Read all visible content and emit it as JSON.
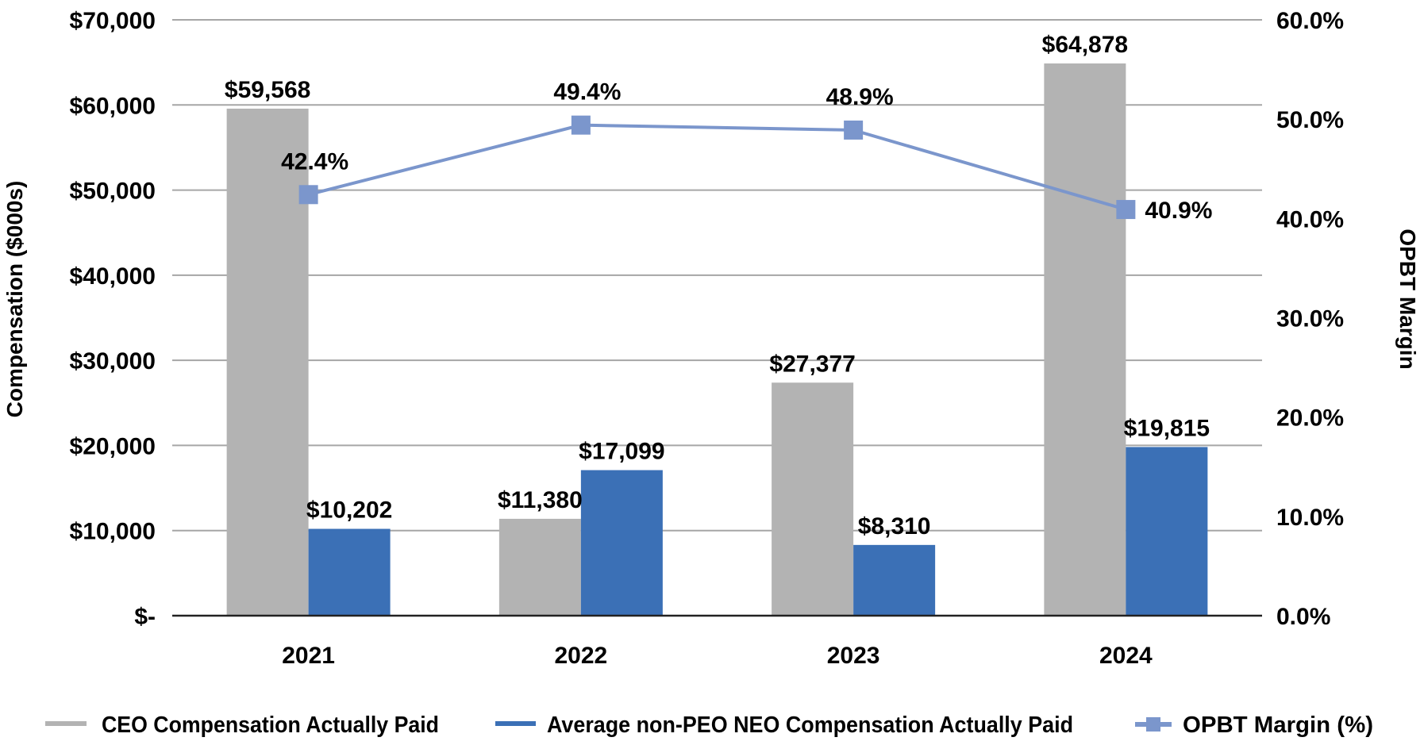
{
  "chart_data": {
    "type": "bar+line",
    "categories": [
      "2021",
      "2022",
      "2023",
      "2024"
    ],
    "series": [
      {
        "name": "CEO Compensation Actually Paid",
        "kind": "bar",
        "axis": "left",
        "color": "#b3b3b3",
        "values": [
          59568,
          11380,
          27377,
          64878
        ],
        "labels": [
          "$59,568",
          "$11,380",
          "$27,377",
          "$64,878"
        ]
      },
      {
        "name": "Average non-PEO NEO Compensation Actually Paid",
        "kind": "bar",
        "axis": "left",
        "color": "#3b70b6",
        "values": [
          10202,
          17099,
          8310,
          19815
        ],
        "labels": [
          "$10,202",
          "$17,099",
          "$8,310",
          "$19,815"
        ]
      },
      {
        "name": "OPBT Margin (%)",
        "kind": "line",
        "marker": "square",
        "axis": "right",
        "color": "#7b96cc",
        "values": [
          42.4,
          49.4,
          48.9,
          40.9
        ],
        "labels": [
          "42.4%",
          "49.4%",
          "48.9%",
          "40.9%"
        ]
      }
    ],
    "ylabel": "Compensation ($000s)",
    "y2label": "OPBT Margin",
    "ylim": [
      0,
      70000
    ],
    "y2lim": [
      0,
      60
    ],
    "yticks": [
      "$-",
      "$10,000",
      "$20,000",
      "$30,000",
      "$40,000",
      "$50,000",
      "$60,000",
      "$70,000"
    ],
    "y2ticks": [
      "0.0%",
      "10.0%",
      "20.0%",
      "30.0%",
      "40.0%",
      "50.0%",
      "60.0%"
    ],
    "grid": true,
    "legend": "bottom"
  }
}
